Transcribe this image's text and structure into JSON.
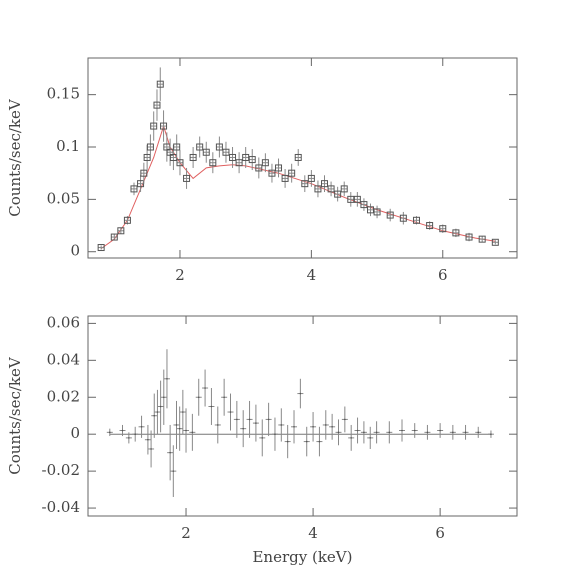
{
  "chart_data": [
    {
      "type": "scatter",
      "ylabel": "Counts/sec/keV",
      "xlim": [
        0.6,
        7.13
      ],
      "ylim": [
        -0.006,
        0.185
      ],
      "xticks": [
        2,
        4,
        6
      ],
      "yticks": [
        0,
        0.05,
        0.1,
        0.15
      ],
      "color": "#555555",
      "x": [
        0.8,
        1.0,
        1.1,
        1.2,
        1.3,
        1.4,
        1.45,
        1.5,
        1.55,
        1.6,
        1.65,
        1.7,
        1.75,
        1.8,
        1.85,
        1.9,
        1.95,
        2.0,
        2.1,
        2.2,
        2.3,
        2.4,
        2.5,
        2.6,
        2.7,
        2.8,
        2.9,
        3.0,
        3.1,
        3.2,
        3.3,
        3.4,
        3.5,
        3.6,
        3.7,
        3.8,
        3.9,
        4.0,
        4.1,
        4.2,
        4.3,
        4.4,
        4.5,
        4.6,
        4.7,
        4.8,
        4.9,
        5.0,
        5.2,
        5.4,
        5.6,
        5.8,
        6.0,
        6.2,
        6.4,
        6.6,
        6.8
      ],
      "values": [
        0.004,
        0.014,
        0.02,
        0.03,
        0.06,
        0.065,
        0.075,
        0.09,
        0.1,
        0.12,
        0.14,
        0.16,
        0.12,
        0.1,
        0.095,
        0.09,
        0.1,
        0.085,
        0.07,
        0.09,
        0.1,
        0.095,
        0.085,
        0.1,
        0.095,
        0.09,
        0.085,
        0.09,
        0.088,
        0.08,
        0.085,
        0.075,
        0.08,
        0.07,
        0.075,
        0.09,
        0.065,
        0.07,
        0.06,
        0.065,
        0.06,
        0.055,
        0.06,
        0.05,
        0.05,
        0.045,
        0.04,
        0.038,
        0.035,
        0.032,
        0.03,
        0.025,
        0.022,
        0.018,
        0.014,
        0.012,
        0.009
      ],
      "errors": [
        0.002,
        0.003,
        0.003,
        0.004,
        0.006,
        0.008,
        0.01,
        0.012,
        0.012,
        0.014,
        0.015,
        0.016,
        0.015,
        0.014,
        0.013,
        0.012,
        0.012,
        0.012,
        0.01,
        0.01,
        0.01,
        0.01,
        0.01,
        0.01,
        0.01,
        0.01,
        0.01,
        0.01,
        0.01,
        0.01,
        0.009,
        0.009,
        0.009,
        0.009,
        0.009,
        0.008,
        0.008,
        0.008,
        0.008,
        0.008,
        0.007,
        0.007,
        0.007,
        0.007,
        0.007,
        0.006,
        0.006,
        0.006,
        0.006,
        0.006,
        0.004,
        0.004,
        0.004,
        0.004,
        0.004,
        0.003,
        0.002
      ],
      "model": {
        "color": "#e06060",
        "x": [
          0.8,
          1.0,
          1.2,
          1.4,
          1.6,
          1.75,
          1.85,
          2.0,
          2.2,
          2.4,
          2.6,
          2.8,
          3.0,
          3.5,
          4.0,
          4.5,
          5.0,
          5.5,
          6.0,
          6.5,
          6.8
        ],
        "values": [
          0.003,
          0.012,
          0.03,
          0.06,
          0.09,
          0.12,
          0.1,
          0.085,
          0.07,
          0.08,
          0.082,
          0.083,
          0.082,
          0.075,
          0.065,
          0.052,
          0.04,
          0.03,
          0.02,
          0.013,
          0.01
        ]
      }
    },
    {
      "type": "scatter",
      "ylabel": "Counts/sec/keV",
      "xlabel": "Energy (keV)",
      "xlim": [
        0.457,
        7.21
      ],
      "ylim": [
        -0.0443,
        0.064
      ],
      "xticks": [
        2,
        4,
        6
      ],
      "yticks": [
        -0.04,
        -0.02,
        0,
        0.02,
        0.04,
        0.06
      ],
      "color": "#555555",
      "x": [
        0.8,
        1.0,
        1.1,
        1.2,
        1.3,
        1.4,
        1.45,
        1.5,
        1.55,
        1.6,
        1.65,
        1.7,
        1.75,
        1.8,
        1.85,
        1.9,
        1.95,
        2.0,
        2.1,
        2.2,
        2.3,
        2.4,
        2.5,
        2.6,
        2.7,
        2.8,
        2.9,
        3.0,
        3.1,
        3.2,
        3.3,
        3.4,
        3.5,
        3.6,
        3.7,
        3.8,
        3.9,
        4.0,
        4.1,
        4.2,
        4.3,
        4.4,
        4.5,
        4.6,
        4.7,
        4.8,
        4.9,
        5.0,
        5.2,
        5.4,
        5.6,
        5.8,
        6.0,
        6.2,
        6.4,
        6.6,
        6.8
      ],
      "values": [
        0.001,
        0.002,
        -0.002,
        0,
        0.004,
        -0.003,
        -0.008,
        0.01,
        0.012,
        0.015,
        0.02,
        0.03,
        -0.01,
        -0.02,
        0.005,
        0.003,
        0.012,
        0.002,
        0.001,
        0.02,
        0.025,
        0.015,
        0.005,
        0.02,
        0.012,
        0.008,
        0.003,
        0.008,
        0.006,
        -0.002,
        0.008,
        0,
        0.005,
        -0.004,
        0.004,
        0.022,
        -0.004,
        0.004,
        -0.004,
        0.005,
        0.004,
        0.001,
        0.008,
        -0.002,
        0.002,
        0.001,
        -0.002,
        0.001,
        0.001,
        0.002,
        0.002,
        0.001,
        0.002,
        0.001,
        0.001,
        0.001,
        0
      ],
      "errors": [
        0.002,
        0.003,
        0.003,
        0.004,
        0.006,
        0.008,
        0.01,
        0.012,
        0.012,
        0.014,
        0.015,
        0.016,
        0.015,
        0.014,
        0.013,
        0.012,
        0.012,
        0.012,
        0.01,
        0.01,
        0.01,
        0.01,
        0.01,
        0.01,
        0.01,
        0.01,
        0.01,
        0.01,
        0.01,
        0.01,
        0.009,
        0.009,
        0.009,
        0.009,
        0.009,
        0.008,
        0.008,
        0.008,
        0.008,
        0.008,
        0.007,
        0.007,
        0.007,
        0.007,
        0.007,
        0.006,
        0.006,
        0.006,
        0.006,
        0.006,
        0.004,
        0.004,
        0.004,
        0.004,
        0.004,
        0.003,
        0.002
      ]
    }
  ]
}
